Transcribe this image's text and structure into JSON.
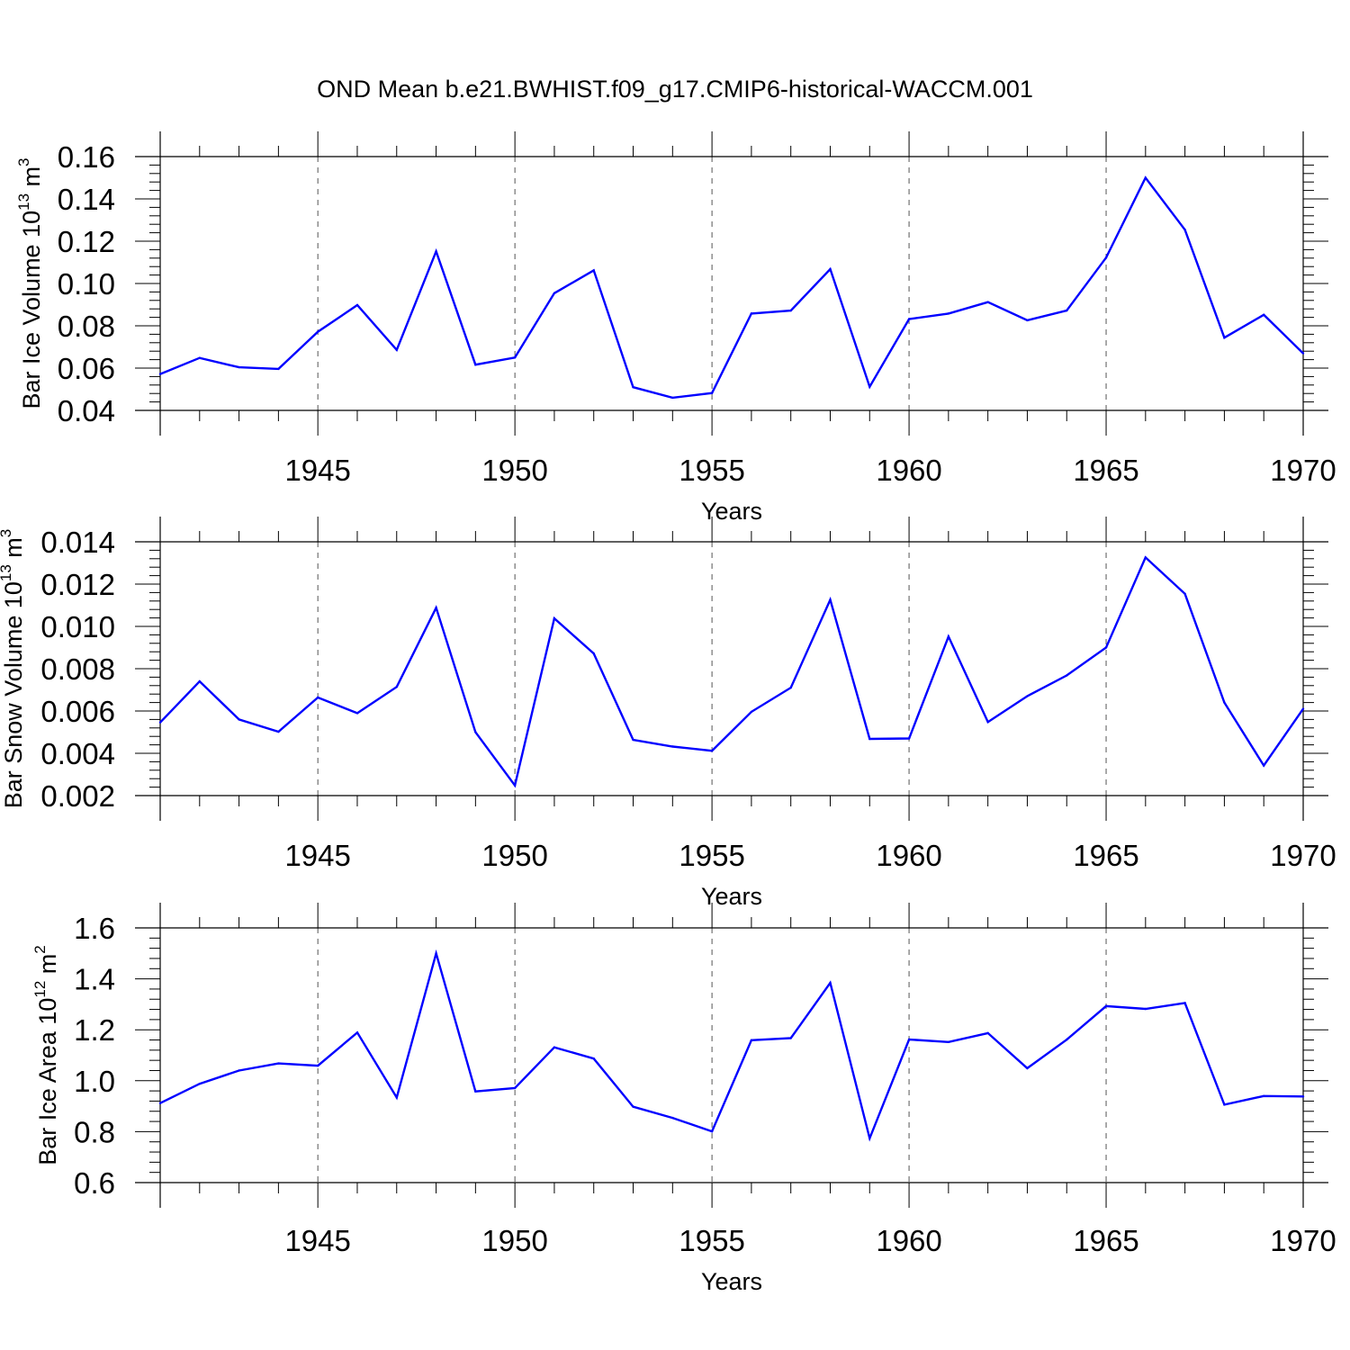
{
  "figure_title": "OND Mean b.e21.BWHIST.f09_g17.CMIP6-historical-WACCM.001",
  "chart_data": [
    {
      "type": "line",
      "title": "",
      "xlabel": "Years",
      "ylabel": {
        "text": "Bar Ice Volume 10",
        "exp": "13",
        "unit": " m",
        "unit_exp": "3"
      },
      "xlim": [
        1941,
        1970
      ],
      "ylim": [
        0.04,
        0.16
      ],
      "x_ticks": [
        1945,
        1950,
        1955,
        1960,
        1965,
        1970
      ],
      "y_ticks": [
        "0.04",
        "0.06",
        "0.08",
        "0.10",
        "0.12",
        "0.14",
        "0.16"
      ],
      "y_tick_values": [
        0.04,
        0.06,
        0.08,
        0.1,
        0.12,
        0.14,
        0.16
      ],
      "grid": "vertical dashed at x ticks",
      "line_color": "#0000ff",
      "x": [
        1941,
        1942,
        1943,
        1944,
        1945,
        1946,
        1947,
        1948,
        1949,
        1950,
        1951,
        1952,
        1953,
        1954,
        1955,
        1956,
        1957,
        1958,
        1959,
        1960,
        1961,
        1962,
        1963,
        1964,
        1965,
        1966,
        1967,
        1968,
        1969,
        1970
      ],
      "values": [
        0.0572,
        0.0648,
        0.0604,
        0.0596,
        0.0772,
        0.0898,
        0.0686,
        0.1152,
        0.0616,
        0.065,
        0.0954,
        0.1062,
        0.051,
        0.046,
        0.0482,
        0.0858,
        0.0872,
        0.1068,
        0.0512,
        0.0832,
        0.0858,
        0.0912,
        0.0826,
        0.0872,
        0.1122,
        0.15,
        0.1254,
        0.0744,
        0.0852,
        0.067
      ]
    },
    {
      "type": "line",
      "title": "",
      "xlabel": "Years",
      "ylabel": {
        "text": "Bar Snow Volume 10",
        "exp": "13",
        "unit": " m",
        "unit_exp": "3"
      },
      "xlim": [
        1941,
        1970
      ],
      "ylim": [
        0.002,
        0.014
      ],
      "x_ticks": [
        1945,
        1950,
        1955,
        1960,
        1965,
        1970
      ],
      "y_ticks": [
        "0.002",
        "0.004",
        "0.006",
        "0.008",
        "0.010",
        "0.012",
        "0.014"
      ],
      "y_tick_values": [
        0.002,
        0.004,
        0.006,
        0.008,
        0.01,
        0.012,
        0.014
      ],
      "grid": "vertical dashed at x ticks",
      "line_color": "#0000ff",
      "x": [
        1941,
        1942,
        1943,
        1944,
        1945,
        1946,
        1947,
        1948,
        1949,
        1950,
        1951,
        1952,
        1953,
        1954,
        1955,
        1956,
        1957,
        1958,
        1959,
        1960,
        1961,
        1962,
        1963,
        1964,
        1965,
        1966,
        1967,
        1968,
        1969,
        1970
      ],
      "values": [
        0.00546,
        0.0074,
        0.0056,
        0.00502,
        0.00664,
        0.0059,
        0.00714,
        0.01088,
        0.005,
        0.00248,
        0.01038,
        0.00872,
        0.00464,
        0.00432,
        0.00412,
        0.00596,
        0.0071,
        0.01126,
        0.00468,
        0.0047,
        0.00952,
        0.00548,
        0.0067,
        0.00768,
        0.009,
        0.01326,
        0.01154,
        0.0064,
        0.00342,
        0.0061
      ]
    },
    {
      "type": "line",
      "title": "",
      "xlabel": "Years",
      "ylabel": {
        "text": "Bar Ice Area 10",
        "exp": "12",
        "unit": " m",
        "unit_exp": "2"
      },
      "xlim": [
        1941,
        1970
      ],
      "ylim": [
        0.6,
        1.6
      ],
      "x_ticks": [
        1945,
        1950,
        1955,
        1960,
        1965,
        1970
      ],
      "y_ticks": [
        "0.6",
        "0.8",
        "1.0",
        "1.2",
        "1.4",
        "1.6"
      ],
      "y_tick_values": [
        0.6,
        0.8,
        1.0,
        1.2,
        1.4,
        1.6
      ],
      "grid": "vertical dashed at x ticks",
      "line_color": "#0000ff",
      "x": [
        1941,
        1942,
        1943,
        1944,
        1945,
        1946,
        1947,
        1948,
        1949,
        1950,
        1951,
        1952,
        1953,
        1954,
        1955,
        1956,
        1957,
        1958,
        1959,
        1960,
        1961,
        1962,
        1963,
        1964,
        1965,
        1966,
        1967,
        1968,
        1969,
        1970
      ],
      "values": [
        0.912,
        0.988,
        1.04,
        1.068,
        1.059,
        1.189,
        0.934,
        1.5,
        0.958,
        0.971,
        1.131,
        1.087,
        0.898,
        0.854,
        0.801,
        1.159,
        1.167,
        1.384,
        0.774,
        1.162,
        1.152,
        1.187,
        1.049,
        1.161,
        1.293,
        1.282,
        1.305,
        0.906,
        0.94,
        0.938
      ]
    }
  ]
}
